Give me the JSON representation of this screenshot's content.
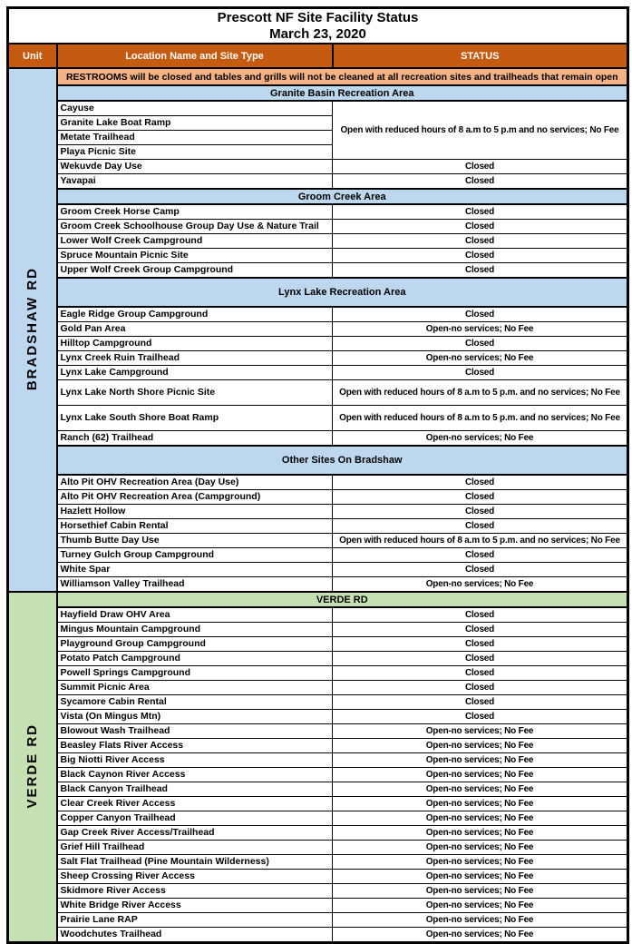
{
  "title": {
    "line1": "Prescott NF Site Facility Status",
    "line2": "March 23, 2020"
  },
  "columns": {
    "unit": "Unit",
    "location": "Location Name and Site Type",
    "status": "STATUS"
  },
  "colors": {
    "header_bg": "#C55A11",
    "header_text": "#FFFFFF",
    "notice_bg": "#F4B183",
    "bradshaw_bg": "#BDD7EE",
    "verde_bg": "#C6E0B4",
    "border": "#000000"
  },
  "units": [
    {
      "name": "BRADSHAW RD",
      "color": "#BDD7EE",
      "rows": [
        {
          "kind": "notice",
          "text": "RESTROOMS will be closed and tables and grills will not be cleaned at all recreation sites and trailheads that remain open"
        },
        {
          "kind": "section",
          "label": "Granite Basin Recreation Area"
        },
        {
          "kind": "site",
          "name": "Cayuse",
          "status": "Open with reduced hours of  8 a.m to 5 p.m and no services; No Fee",
          "merge": 4
        },
        {
          "kind": "site",
          "name": "Granite Lake Boat Ramp",
          "merge": 0
        },
        {
          "kind": "site",
          "name": "Metate Trailhead",
          "merge": 0
        },
        {
          "kind": "site",
          "name": "Playa Picnic Site",
          "merge": 0
        },
        {
          "kind": "site",
          "name": "Wekuvde Day Use",
          "status": "Closed"
        },
        {
          "kind": "site",
          "name": "Yavapai",
          "status": "Closed"
        },
        {
          "kind": "section",
          "label": "Groom Creek Area"
        },
        {
          "kind": "site",
          "name": "Groom Creek Horse Camp",
          "status": "Closed"
        },
        {
          "kind": "site",
          "name": "Groom Creek Schoolhouse Group Day Use & Nature Trail",
          "status": "Closed"
        },
        {
          "kind": "site",
          "name": "Lower Wolf Creek Campground",
          "status": "Closed"
        },
        {
          "kind": "site",
          "name": "Spruce Mountain Picnic Site",
          "status": "Closed"
        },
        {
          "kind": "site",
          "name": "Upper Wolf Creek Group Campground",
          "status": "Closed"
        },
        {
          "kind": "section",
          "label": "Lynx Lake Recreation Area",
          "tall": true
        },
        {
          "kind": "site",
          "name": "Eagle Ridge Group Campground",
          "status": "Closed"
        },
        {
          "kind": "site",
          "name": "Gold Pan Area",
          "status": "Open-no services; No Fee"
        },
        {
          "kind": "site",
          "name": "Hilltop Campground",
          "status": "Closed"
        },
        {
          "kind": "site",
          "name": "Lynx Creek Ruin Trailhead",
          "status": "Open-no services; No Fee"
        },
        {
          "kind": "site",
          "name": "Lynx Lake Campground",
          "status": "Closed"
        },
        {
          "kind": "site",
          "name": "Lynx Lake North Shore Picnic Site",
          "status": "Open with reduced hours of  8 a.m to 5 p.m. and no services; No Fee",
          "tall": true
        },
        {
          "kind": "site",
          "name": "Lynx Lake South Shore Boat Ramp",
          "status": "Open with reduced hours of  8 a.m to 5 p.m. and no services; No Fee",
          "tall": true
        },
        {
          "kind": "site",
          "name": "Ranch (62) Trailhead",
          "status": "Open-no services; No Fee"
        },
        {
          "kind": "section",
          "label": "Other Sites On Bradshaw",
          "tall": true
        },
        {
          "kind": "site",
          "name": "Alto Pit OHV Recreation Area (Day Use)",
          "status": "Closed"
        },
        {
          "kind": "site",
          "name": "Alto Pit OHV Recreation Area (Campground)",
          "status": "Closed"
        },
        {
          "kind": "site",
          "name": "Hazlett Hollow",
          "status": "Closed"
        },
        {
          "kind": "site",
          "name": "Horsethief Cabin Rental",
          "status": "Closed"
        },
        {
          "kind": "site",
          "name": "Thumb Butte Day Use",
          "status": "Open with reduced hours of  8 a.m to 5 p.m. and no services; No Fee"
        },
        {
          "kind": "site",
          "name": "Turney Gulch Group Campground",
          "status": "Closed"
        },
        {
          "kind": "site",
          "name": "White Spar",
          "status": "Closed"
        },
        {
          "kind": "site",
          "name": "Williamson Valley Trailhead",
          "status": "Open-no services; No Fee"
        }
      ]
    },
    {
      "name": "VERDE RD",
      "color": "#C6E0B4",
      "rows": [
        {
          "kind": "section",
          "label": "VERDE RD"
        },
        {
          "kind": "site",
          "name": "Hayfield Draw  OHV Area",
          "status": "Closed"
        },
        {
          "kind": "site",
          "name": "Mingus Mountain Campground",
          "status": "Closed"
        },
        {
          "kind": "site",
          "name": "Playground Group Campground",
          "status": "Closed"
        },
        {
          "kind": "site",
          "name": "Potato Patch Campground",
          "status": "Closed"
        },
        {
          "kind": "site",
          "name": "Powell Springs Campground",
          "status": "Closed"
        },
        {
          "kind": "site",
          "name": "Summit Picnic Area",
          "status": "Closed"
        },
        {
          "kind": "site",
          "name": "Sycamore Cabin Rental",
          "status": "Closed"
        },
        {
          "kind": "site",
          "name": "Vista (On Mingus Mtn)",
          "status": "Closed"
        },
        {
          "kind": "site",
          "name": "Blowout Wash Trailhead",
          "status": "Open-no services; No Fee"
        },
        {
          "kind": "site",
          "name": "Beasley Flats River Access",
          "status": "Open-no services; No Fee"
        },
        {
          "kind": "site",
          "name": "Big Niotti River Access",
          "status": "Open-no services; No Fee"
        },
        {
          "kind": "site",
          "name": "Black Caynon River Access",
          "status": "Open-no services; No Fee"
        },
        {
          "kind": "site",
          "name": "Black Canyon Trailhead",
          "status": "Open-no services; No Fee"
        },
        {
          "kind": "site",
          "name": "Clear Creek River Access",
          "status": "Open-no services; No Fee"
        },
        {
          "kind": "site",
          "name": "Copper Canyon Trailhead",
          "status": "Open-no services; No Fee"
        },
        {
          "kind": "site",
          "name": "Gap Creek River Access/Trailhead",
          "status": "Open-no services; No Fee"
        },
        {
          "kind": "site",
          "name": "Grief Hill Trailhead",
          "status": "Open-no services; No Fee"
        },
        {
          "kind": "site",
          "name": "Salt Flat Trailhead (Pine Mountain Wilderness)",
          "status": "Open-no services; No Fee"
        },
        {
          "kind": "site",
          "name": "Sheep Crossing River Access",
          "status": "Open-no services; No Fee"
        },
        {
          "kind": "site",
          "name": "Skidmore River Access",
          "status": "Open-no services; No Fee"
        },
        {
          "kind": "site",
          "name": "White Bridge River Access",
          "status": "Open-no services; No Fee"
        },
        {
          "kind": "site",
          "name": "Prairie Lane RAP",
          "status": "Open-no services; No Fee"
        },
        {
          "kind": "site",
          "name": "Woodchutes Trailhead",
          "status": "Open-no services; No Fee"
        }
      ]
    }
  ]
}
